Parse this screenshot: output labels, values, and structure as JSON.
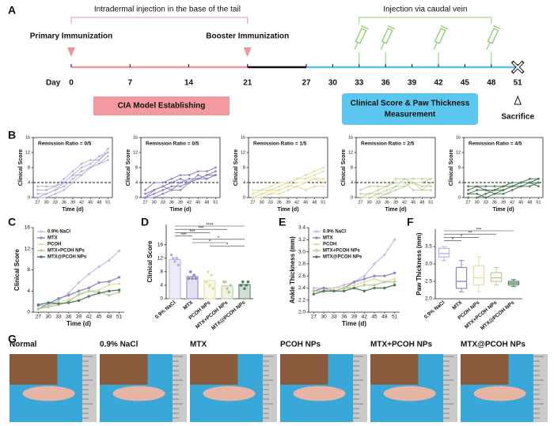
{
  "panel_labels": [
    "A",
    "B",
    "C",
    "D",
    "E",
    "F",
    "G"
  ],
  "timeline": {
    "day_label": "Day",
    "days": [
      0,
      7,
      14,
      21,
      27,
      30,
      33,
      36,
      39,
      42,
      45,
      48,
      51
    ],
    "top_left": "Intradermal injection in the base of the tail",
    "top_right": "Injection via caudal vein",
    "primary": "Primary Immunization",
    "booster": "Booster Immunization",
    "injection_days": [
      33,
      36,
      42,
      48
    ],
    "model_box": "CIA Model Establishing",
    "measure_box": [
      "Clinical Score & Paw Thickness",
      "Measurement"
    ],
    "sacrifice": "Sacrifice"
  },
  "chart_data": [
    {
      "type": "line",
      "title": "Remission Ratio = 0/5",
      "categories": [
        27,
        30,
        33,
        36,
        39,
        42,
        45,
        48,
        51
      ],
      "xlabel": "Time (d)",
      "ylabel": "Clinical Score",
      "ylim": [
        0,
        16
      ],
      "yticks": [
        0,
        4,
        8,
        12,
        16
      ],
      "threshold": 4,
      "series": [
        {
          "color": "#b9b3dc",
          "values": [
            0,
            0,
            1,
            2,
            4,
            6,
            8,
            10,
            13
          ]
        },
        {
          "color": "#b9b3dc",
          "values": [
            2,
            2,
            3,
            4,
            6,
            8,
            9,
            11,
            12
          ]
        },
        {
          "color": "#b9b3dc",
          "values": [
            0,
            1,
            2,
            3,
            5,
            7,
            8,
            9,
            11
          ]
        },
        {
          "color": "#b9b3dc",
          "values": [
            3,
            3,
            3,
            5,
            7,
            9,
            10,
            10,
            12
          ]
        },
        {
          "color": "#b9b3dc",
          "values": [
            1,
            1,
            2,
            4,
            6,
            6,
            8,
            9,
            10
          ]
        }
      ]
    },
    {
      "type": "line",
      "title": "Remission Ratio = 0/5",
      "categories": [
        27,
        30,
        33,
        36,
        39,
        42,
        45,
        48,
        51
      ],
      "xlabel": "Time (d)",
      "ylabel": "Clinical Score",
      "ylim": [
        0,
        16
      ],
      "yticks": [
        0,
        4,
        8,
        12,
        16
      ],
      "threshold": 4,
      "series": [
        {
          "color": "#8a86c6",
          "values": [
            0,
            2,
            3,
            4,
            5,
            4,
            5,
            6,
            6
          ]
        },
        {
          "color": "#8a86c6",
          "values": [
            2,
            4,
            4,
            5,
            6,
            6,
            7,
            7,
            8
          ]
        },
        {
          "color": "#8a86c6",
          "values": [
            0,
            1,
            2,
            3,
            3,
            4,
            5,
            5,
            6
          ]
        },
        {
          "color": "#8a86c6",
          "values": [
            1,
            2,
            3,
            2,
            4,
            5,
            5,
            6,
            7
          ]
        },
        {
          "color": "#8a86c6",
          "values": [
            0,
            0,
            1,
            2,
            2,
            4,
            6,
            5,
            6
          ]
        }
      ]
    },
    {
      "type": "line",
      "title": "Remission Ratio = 1/5",
      "categories": [
        27,
        30,
        33,
        36,
        39,
        42,
        45,
        48,
        51
      ],
      "xlabel": "Time (d)",
      "ylabel": "Clinical Score",
      "ylim": [
        0,
        16
      ],
      "yticks": [
        0,
        4,
        8,
        12,
        16
      ],
      "threshold": 4,
      "series": [
        {
          "color": "#e3dea4",
          "values": [
            0,
            1,
            2,
            2,
            3,
            4,
            4,
            5,
            5
          ]
        },
        {
          "color": "#e3dea4",
          "values": [
            1,
            2,
            2,
            3,
            4,
            5,
            6,
            7,
            8
          ]
        },
        {
          "color": "#e3dea4",
          "values": [
            0,
            0,
            1,
            1,
            2,
            3,
            4,
            5,
            4
          ]
        },
        {
          "color": "#e3dea4",
          "values": [
            2,
            2,
            3,
            4,
            4,
            5,
            5,
            6,
            7
          ]
        },
        {
          "color": "#e3dea4",
          "values": [
            0,
            1,
            1,
            2,
            3,
            3,
            2,
            3,
            3
          ]
        }
      ]
    },
    {
      "type": "line",
      "title": "Remission Ratio = 2/5",
      "categories": [
        27,
        30,
        33,
        36,
        39,
        42,
        45,
        48,
        51
      ],
      "xlabel": "Time (d)",
      "ylabel": "Clinical Score",
      "ylim": [
        0,
        16
      ],
      "yticks": [
        0,
        4,
        8,
        12,
        16
      ],
      "threshold": 4,
      "series": [
        {
          "color": "#c5d4a4",
          "values": [
            0,
            1,
            1,
            2,
            3,
            5,
            5,
            5,
            5
          ]
        },
        {
          "color": "#c5d4a4",
          "values": [
            1,
            1,
            2,
            3,
            5,
            5,
            4,
            4,
            5
          ]
        },
        {
          "color": "#c5d4a4",
          "values": [
            0,
            0,
            0,
            1,
            2,
            3,
            4,
            3,
            3
          ]
        },
        {
          "color": "#c5d4a4",
          "values": [
            2,
            3,
            3,
            3,
            4,
            4,
            2,
            2,
            2
          ]
        },
        {
          "color": "#c5d4a4",
          "values": [
            0,
            0,
            1,
            1,
            3,
            3,
            4,
            2,
            4
          ]
        }
      ]
    },
    {
      "type": "line",
      "title": "Remission Ratio = 4/5",
      "categories": [
        27,
        30,
        33,
        36,
        39,
        42,
        45,
        48,
        51
      ],
      "xlabel": "Time (d)",
      "ylabel": "Clinical Score",
      "ylim": [
        0,
        16
      ],
      "yticks": [
        0,
        4,
        8,
        12,
        16
      ],
      "threshold": 4,
      "series": [
        {
          "color": "#4f7a5a",
          "values": [
            1,
            2,
            2,
            2,
            3,
            3,
            4,
            4,
            4
          ]
        },
        {
          "color": "#4f7a5a",
          "values": [
            3,
            3,
            3,
            3,
            3,
            4,
            4,
            4,
            5
          ]
        },
        {
          "color": "#4f7a5a",
          "values": [
            0,
            0,
            1,
            2,
            2,
            3,
            3,
            4,
            3
          ]
        },
        {
          "color": "#4f7a5a",
          "values": [
            1,
            1,
            0,
            1,
            1,
            2,
            3,
            3,
            4
          ]
        },
        {
          "color": "#4f7a5a",
          "values": [
            2,
            3,
            2,
            1,
            2,
            3,
            4,
            5,
            5
          ]
        }
      ]
    },
    {
      "type": "line",
      "categories": [
        27,
        30,
        33,
        36,
        39,
        42,
        45,
        48,
        51
      ],
      "xlabel": "Time (d)",
      "ylabel": "Clinical Score",
      "ylim": [
        0,
        16
      ],
      "yticks": [
        0,
        4,
        8,
        12,
        16
      ],
      "series": [
        {
          "name": "0.9% NaCl",
          "color": "#c6c2e6",
          "values": [
            1.2,
            1.4,
            2.2,
            3.6,
            5.6,
            7.2,
            8.6,
            9.8,
            11.6
          ]
        },
        {
          "name": "MTX",
          "color": "#8c88c8",
          "values": [
            0.6,
            1.6,
            2.6,
            3.2,
            4,
            4.6,
            5.6,
            5.8,
            6.6
          ]
        },
        {
          "name": "PCOH",
          "color": "#e3dea4",
          "values": [
            0.6,
            1.2,
            1.8,
            2.4,
            3.2,
            4,
            4.2,
            5.2,
            5.4
          ]
        },
        {
          "name": "MTX+PCOH NPs",
          "color": "#b8cc98",
          "values": [
            0.6,
            1,
            1.4,
            2,
            3.4,
            4,
            3.8,
            3.2,
            3.8
          ]
        },
        {
          "name": "MTX@PCOH NPs",
          "color": "#4d7d58",
          "values": [
            1.4,
            1.8,
            1.6,
            1.8,
            2.2,
            3,
            3.6,
            4,
            4.2
          ]
        }
      ]
    },
    {
      "type": "bar",
      "categories": [
        "0.9% NaCl",
        "MTX",
        "PCOH NPs",
        "MTX+PCOH NPs",
        "MTX@PCOH NPs"
      ],
      "ylabel": "Clinical Score",
      "ylim": [
        0,
        22
      ],
      "yticks": [
        0,
        4,
        8,
        12,
        16
      ],
      "colors": [
        "#b9b3dc",
        "#8c88c8",
        "#e3dea4",
        "#b8cc98",
        "#4d7d58"
      ],
      "values": [
        11.6,
        6.6,
        5.4,
        3.8,
        4.2
      ],
      "points": [
        [
          13,
          12,
          11,
          12,
          10
        ],
        [
          6,
          8,
          6,
          7,
          6
        ],
        [
          5,
          8,
          4,
          7,
          3
        ],
        [
          5,
          5,
          3,
          2,
          4
        ],
        [
          4,
          5,
          3,
          4,
          5
        ]
      ],
      "significance": [
        {
          "from": 0,
          "to": 4,
          "label": "****"
        },
        {
          "from": 0,
          "to": 3,
          "label": "***"
        },
        {
          "from": 0,
          "to": 2,
          "label": "***"
        },
        {
          "from": 0,
          "to": 1,
          "label": "***"
        },
        {
          "from": 1,
          "to": 4,
          "label": "*"
        },
        {
          "from": 1,
          "to": 3,
          "label": "*"
        },
        {
          "from": 2,
          "to": 4,
          "label": "*"
        }
      ]
    },
    {
      "type": "line",
      "categories": [
        27,
        30,
        33,
        36,
        39,
        42,
        45,
        48,
        51
      ],
      "xlabel": "Time (d)",
      "ylabel": "Ankle Thickness (mm)",
      "ylim": [
        2.0,
        3.4
      ],
      "yticks": [
        {
          "value": 2.0,
          "label": "2.0"
        },
        {
          "value": 2.2,
          "label": "2.2"
        },
        {
          "value": 2.4,
          "label": "2.4"
        },
        {
          "value": 2.6,
          "label": "2.6"
        },
        {
          "value": 2.8,
          "label": "2.8"
        },
        {
          "value": 3.0,
          "label": "3.0"
        },
        {
          "value": 3.2,
          "label": "3.2"
        },
        {
          "value": 3.4,
          "label": "3.4"
        }
      ],
      "series": [
        {
          "name": "0.9% NaCl",
          "color": "#c6c2e6",
          "values": [
            2.4,
            2.4,
            2.4,
            2.45,
            2.5,
            2.6,
            2.8,
            2.95,
            3.2
          ]
        },
        {
          "name": "MTX",
          "color": "#8c88c8",
          "values": [
            2.35,
            2.4,
            2.35,
            2.4,
            2.5,
            2.55,
            2.6,
            2.6,
            2.65
          ]
        },
        {
          "name": "PCOH",
          "color": "#e3dea4",
          "values": [
            2.35,
            2.35,
            2.4,
            2.4,
            2.45,
            2.5,
            2.55,
            2.5,
            2.55
          ]
        },
        {
          "name": "MTX+PCOH NPs",
          "color": "#b8cc98",
          "values": [
            2.35,
            2.35,
            2.35,
            2.4,
            2.4,
            2.45,
            2.45,
            2.5,
            2.5
          ]
        },
        {
          "name": "MTX@PCOH NPs",
          "color": "#4d7d58",
          "values": [
            2.3,
            2.35,
            2.35,
            2.35,
            2.4,
            2.35,
            2.4,
            2.4,
            2.45
          ]
        }
      ]
    },
    {
      "type": "box",
      "categories": [
        "0.9% NaCl",
        "MTX",
        "PCOH NPs",
        "MTX+PCOH NPs",
        "MTX@PCOH NPs"
      ],
      "ylabel": "Paw Thickness (mm)",
      "ylim": [
        2.0,
        4.0
      ],
      "yticks": [
        {
          "value": 2.0,
          "label": "2.0"
        },
        {
          "value": 2.5,
          "label": "2.5"
        },
        {
          "value": 3.0,
          "label": "3.0"
        },
        {
          "value": 3.5,
          "label": "3.5"
        }
      ],
      "colors": [
        "#b9b3dc",
        "#8c88c8",
        "#e3dea4",
        "#b8cc98",
        "#4d7d58"
      ],
      "boxes": [
        {
          "min": 3.1,
          "q1": 3.2,
          "median": 3.3,
          "q3": 3.45,
          "max": 3.5
        },
        {
          "min": 2.2,
          "q1": 2.3,
          "median": 2.5,
          "q3": 2.9,
          "max": 3.1
        },
        {
          "min": 2.2,
          "q1": 2.4,
          "median": 2.6,
          "q3": 2.95,
          "max": 3.2
        },
        {
          "min": 2.4,
          "q1": 2.5,
          "median": 2.6,
          "q3": 2.75,
          "max": 2.9
        },
        {
          "min": 2.35,
          "q1": 2.4,
          "median": 2.45,
          "q3": 2.5,
          "max": 2.55
        }
      ],
      "significance": [
        {
          "from": 0,
          "to": 4,
          "label": "***"
        },
        {
          "from": 0,
          "to": 3,
          "label": "**"
        },
        {
          "from": 0,
          "to": 2,
          "label": "*"
        },
        {
          "from": 0,
          "to": 1,
          "label": "*"
        }
      ]
    }
  ],
  "photos": {
    "labels": [
      "Normal",
      "0.9% NaCl",
      "MTX",
      "PCOH NPs",
      "MTX+PCOH NPs",
      "MTX@PCOH NPs"
    ]
  }
}
